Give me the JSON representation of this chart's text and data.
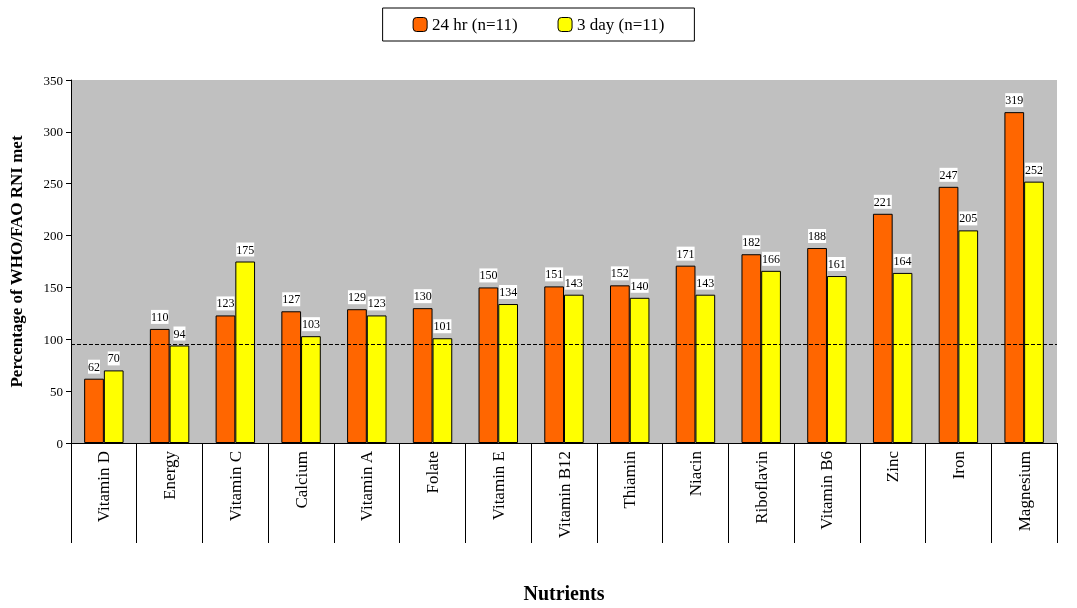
{
  "chart_data": {
    "type": "bar",
    "xlabel": "Nutrients",
    "ylabel": "Percentage of WHO/FAO RNI met",
    "categories": [
      "Vitamin D",
      "Energy",
      "Vitamin C",
      "Calcium",
      "Vitamin A",
      "Folate",
      "Vitamin E",
      "Vitamin B12",
      "Thiamin",
      "Niacin",
      "Riboflavin",
      "Vitamin B6",
      "Zinc",
      "Iron",
      "Magnesium"
    ],
    "series": [
      {
        "name": "24 hr (n=11)",
        "color": "#ff6600",
        "values": [
          62,
          110,
          123,
          127,
          129,
          130,
          150,
          151,
          152,
          171,
          182,
          188,
          221,
          247,
          319
        ]
      },
      {
        "name": "3 day (n=11)",
        "color": "#ffff00",
        "values": [
          70,
          94,
          175,
          103,
          123,
          101,
          134,
          143,
          140,
          143,
          166,
          161,
          164,
          205,
          252
        ]
      }
    ],
    "ylim": [
      0,
      350
    ],
    "yticks": [
      0,
      50,
      100,
      150,
      200,
      250,
      300,
      350
    ],
    "ref_lines": [
      {
        "axis": "y",
        "value": 95,
        "line_style": "dashed",
        "color": "#000000"
      }
    ],
    "data_labels": true,
    "legend": "top"
  }
}
